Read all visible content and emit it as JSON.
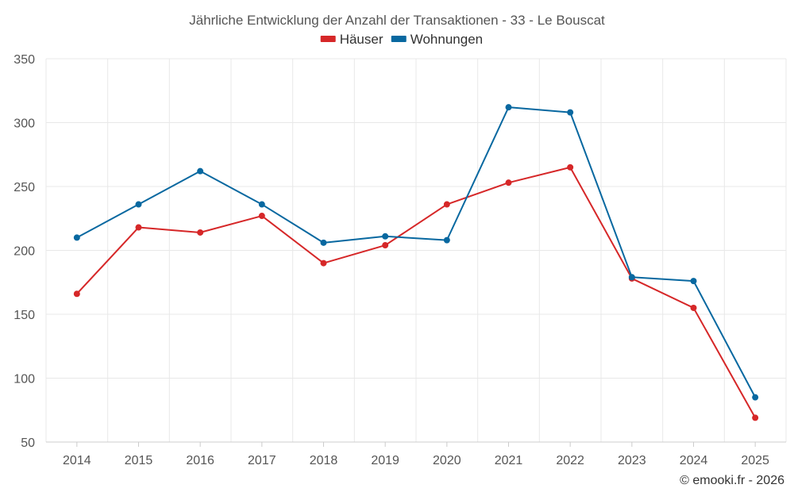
{
  "footer": "© emooki.fr - 2026",
  "chart_data": {
    "type": "line",
    "title": "Jährliche Entwicklung der Anzahl der Transaktionen - 33 - Le Bouscat",
    "xlabel": "",
    "ylabel": "",
    "categories": [
      "2014",
      "2015",
      "2016",
      "2017",
      "2018",
      "2019",
      "2020",
      "2021",
      "2022",
      "2023",
      "2024",
      "2025"
    ],
    "ylim": [
      50,
      350
    ],
    "yticks": [
      50,
      100,
      150,
      200,
      250,
      300,
      350
    ],
    "grid": true,
    "legend_position": "top-center",
    "series": [
      {
        "name": "Häuser",
        "color": "#d62728",
        "values": [
          166,
          218,
          214,
          227,
          190,
          204,
          236,
          253,
          265,
          178,
          155,
          69
        ]
      },
      {
        "name": "Wohnungen",
        "color": "#0868a0",
        "values": [
          210,
          236,
          262,
          236,
          206,
          211,
          208,
          312,
          308,
          179,
          176,
          85
        ]
      }
    ]
  }
}
